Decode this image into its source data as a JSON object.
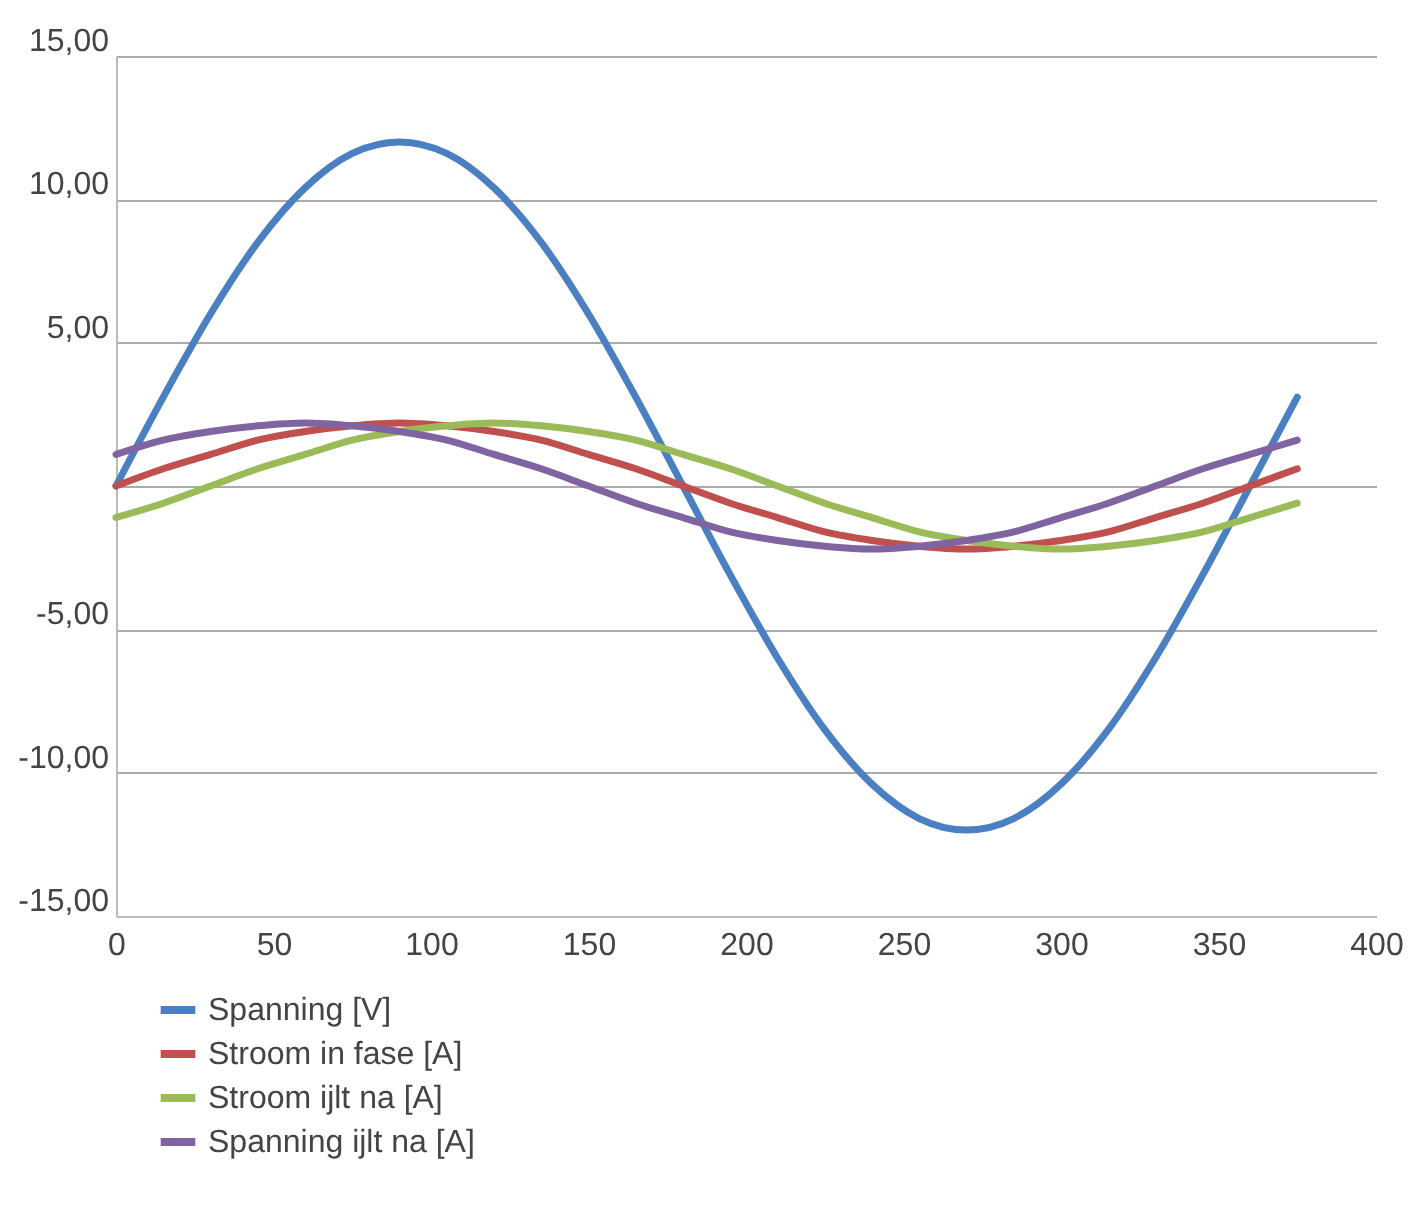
{
  "chart_data": {
    "type": "line",
    "x": [
      0,
      15,
      30,
      45,
      60,
      75,
      90,
      105,
      120,
      135,
      150,
      165,
      180,
      195,
      210,
      225,
      240,
      255,
      270,
      285,
      300,
      315,
      330,
      345,
      360,
      375
    ],
    "series": [
      {
        "name": "Spanning [V]",
        "color": "#4a7fc1",
        "values": [
          0,
          3.1,
          6,
          8.5,
          10.4,
          11.6,
          12,
          11.6,
          10.4,
          8.5,
          6,
          3.1,
          0,
          -3.1,
          -6,
          -8.5,
          -10.4,
          -11.6,
          -12,
          -11.6,
          -10.4,
          -8.5,
          -6,
          -3.1,
          0,
          3.1
        ]
      },
      {
        "name": "Stroom in fase [A]",
        "color": "#c0504d",
        "values": [
          0,
          0.6,
          1.1,
          1.6,
          1.9,
          2.1,
          2.2,
          2.1,
          1.9,
          1.6,
          1.1,
          0.6,
          0,
          -0.6,
          -1.1,
          -1.6,
          -1.9,
          -2.1,
          -2.2,
          -2.1,
          -1.9,
          -1.6,
          -1.1,
          -0.6,
          0,
          0.6
        ]
      },
      {
        "name": "Stroom ijlt na [A]",
        "color": "#9bbb59",
        "values": [
          -1.1,
          -0.6,
          0,
          0.6,
          1.1,
          1.6,
          1.9,
          2.1,
          2.2,
          2.1,
          1.9,
          1.6,
          1.1,
          0.6,
          0,
          -0.6,
          -1.1,
          -1.6,
          -1.9,
          -2.1,
          -2.2,
          -2.1,
          -1.9,
          -1.6,
          -1.1,
          -0.6
        ]
      },
      {
        "name": "Spanning ijlt na [A]",
        "color": "#8064a2",
        "values": [
          1.1,
          1.6,
          1.9,
          2.1,
          2.2,
          2.1,
          1.9,
          1.6,
          1.1,
          0.6,
          0,
          -0.6,
          -1.1,
          -1.6,
          -1.9,
          -2.1,
          -2.2,
          -2.1,
          -1.9,
          -1.6,
          -1.1,
          -0.6,
          0,
          0.6,
          1.1,
          1.6
        ]
      }
    ],
    "xlim": [
      0,
      400
    ],
    "xticks": [
      0,
      50,
      100,
      150,
      200,
      250,
      300,
      350,
      400
    ],
    "ylim": [
      -15,
      15
    ],
    "yticks": [
      {
        "value": -15,
        "label": "-15,00"
      },
      {
        "value": -10,
        "label": "-10,00"
      },
      {
        "value": -5,
        "label": "-5,00"
      },
      {
        "value": 0,
        "label": null
      },
      {
        "value": 5,
        "label": "5,00"
      },
      {
        "value": 10,
        "label": "10,00"
      },
      {
        "value": 15,
        "label": "15,00"
      }
    ],
    "grid": "y",
    "legend": "bottom left",
    "marker": "none",
    "line_style": "solid"
  }
}
